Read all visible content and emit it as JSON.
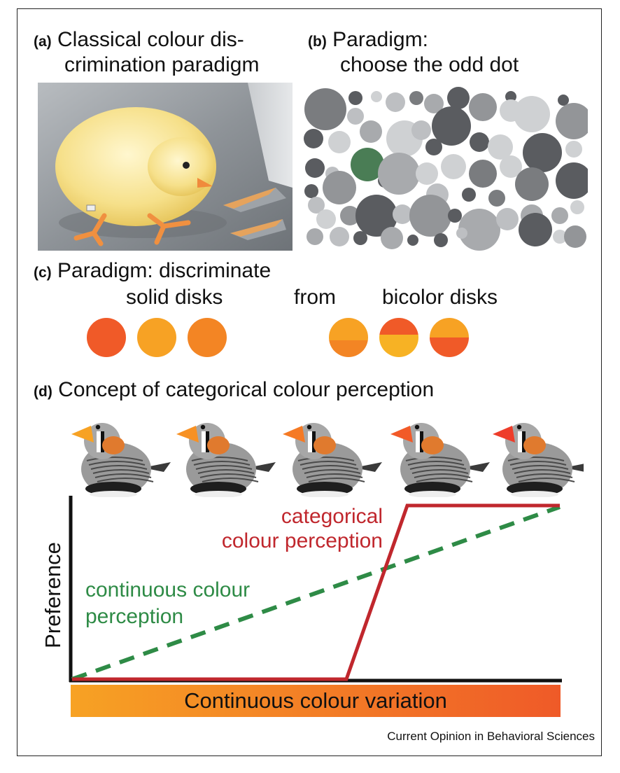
{
  "figure": {
    "credit": "Current Opinion in Behavioral Sciences"
  },
  "panel_a": {
    "label": "(a)",
    "title_line1": "Classical colour dis-",
    "title_line2": "crimination paradigm",
    "photo_icon": "chick-pecking-photo"
  },
  "panel_b": {
    "label": "(b)",
    "title_line1": "Paradigm:",
    "title_line2": "choose the odd dot",
    "odd_dot_color": "#4a7d55"
  },
  "panel_c": {
    "label": "(c)",
    "title_line1": "Paradigm: discriminate",
    "word_left": "solid disks",
    "word_mid": "from",
    "word_right": "bicolor disks",
    "solid_colors": [
      "#f05a28",
      "#f7a224",
      "#f38524"
    ],
    "bicolor_pairs": [
      [
        "#f7a224",
        "#f38524"
      ],
      [
        "#f05a28",
        "#f7b224"
      ],
      [
        "#f7a224",
        "#f05a28"
      ]
    ]
  },
  "panel_d": {
    "label": "(d)",
    "title": "Concept of categorical colour perception",
    "beak_colors": [
      "#f7a224",
      "#f79124",
      "#f57a24",
      "#f25a28",
      "#ee3d2a"
    ],
    "bird_icon": "zebra-finch-icon",
    "y_axis_label": "Preference",
    "x_bar_label": "Continuous colour variation",
    "categorical_label_line1": "categorical",
    "categorical_label_line2": "colour perception",
    "continuous_label_line1": "continuous colour",
    "continuous_label_line2": "perception",
    "categorical_color": "#c0272d",
    "continuous_color": "#2e8b46",
    "gradient_start": "#f7a224",
    "gradient_end": "#ef5a28"
  }
}
